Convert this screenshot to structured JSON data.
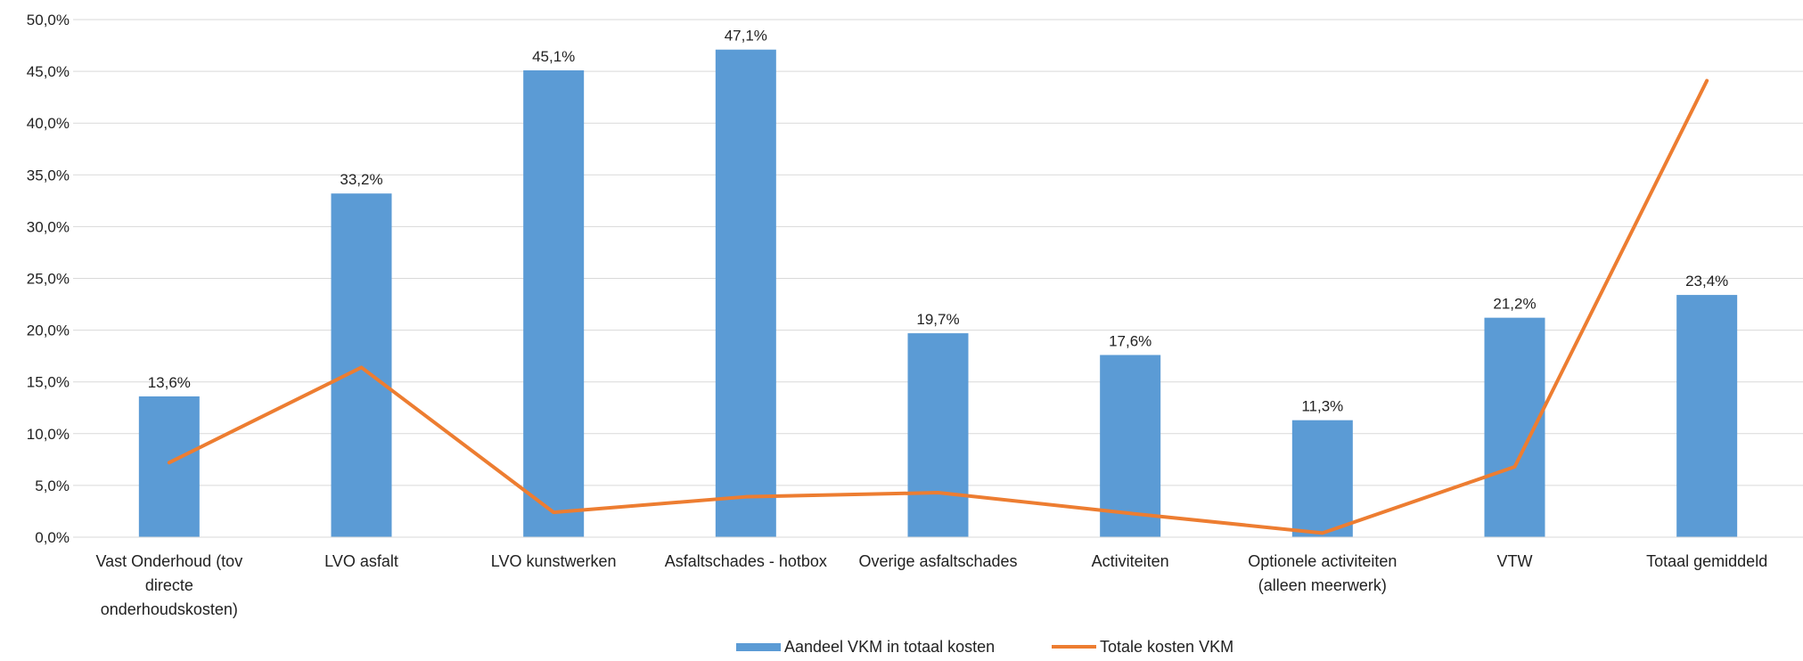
{
  "chart_data": {
    "type": "bar",
    "categories": [
      "Vast Onderhoud (tov directe onderhoudskosten)",
      "LVO asfalt",
      "LVO kunstwerken",
      "Asfaltschades - hotbox",
      "Overige asfaltschades",
      "Activiteiten",
      "Optionele activiteiten (alleen meerwerk)",
      "VTW",
      "Totaal gemiddeld"
    ],
    "category_lines": [
      [
        "Vast Onderhoud (tov",
        "directe",
        "onderhoudskosten)"
      ],
      [
        "LVO asfalt"
      ],
      [
        "LVO kunstwerken"
      ],
      [
        "Asfaltschades - hotbox"
      ],
      [
        "Overige asfaltschades"
      ],
      [
        "Activiteiten"
      ],
      [
        "Optionele activiteiten",
        "(alleen meerwerk)"
      ],
      [
        "VTW"
      ],
      [
        "Totaal gemiddeld"
      ]
    ],
    "series": [
      {
        "name": "Aandeel VKM in totaal kosten",
        "kind": "bar",
        "color": "#5b9bd5",
        "values": [
          13.6,
          33.2,
          45.1,
          47.1,
          19.7,
          17.6,
          11.3,
          21.2,
          23.4
        ],
        "data_labels": [
          "13,6%",
          "33,2%",
          "45,1%",
          "47,1%",
          "19,7%",
          "17,6%",
          "11,3%",
          "21,2%",
          "23,4%"
        ]
      },
      {
        "name": "Totale kosten VKM",
        "kind": "line",
        "color": "#ed7d31",
        "values": [
          7.2,
          16.4,
          2.4,
          3.9,
          4.3,
          2.3,
          0.4,
          6.8,
          44.1
        ]
      }
    ],
    "y_ticks": [
      "0,0%",
      "5,0%",
      "10,0%",
      "15,0%",
      "20,0%",
      "25,0%",
      "30,0%",
      "35,0%",
      "40,0%",
      "45,0%",
      "50,0%"
    ],
    "ylim": [
      0,
      50
    ],
    "grid": true,
    "legend_position": "bottom"
  }
}
